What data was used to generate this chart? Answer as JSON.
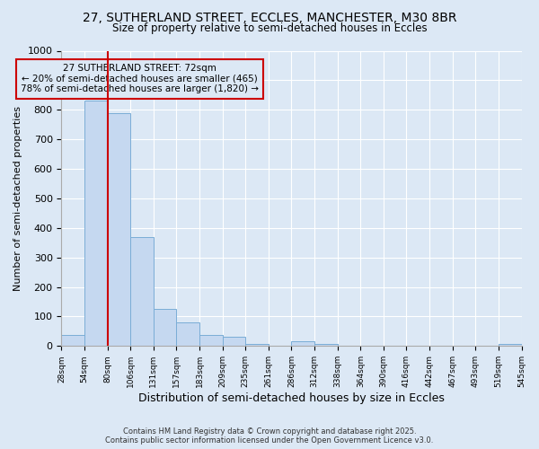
{
  "title_line1": "27, SUTHERLAND STREET, ECCLES, MANCHESTER, M30 8BR",
  "title_line2": "Size of property relative to semi-detached houses in Eccles",
  "xlabel": "Distribution of semi-detached houses by size in Eccles",
  "ylabel": "Number of semi-detached properties",
  "bar_values": [
    38,
    830,
    790,
    370,
    125,
    80,
    38,
    32,
    8,
    0,
    15,
    8,
    0,
    0,
    0,
    0,
    0,
    0,
    0,
    8
  ],
  "bin_labels": [
    "28sqm",
    "54sqm",
    "80sqm",
    "106sqm",
    "131sqm",
    "157sqm",
    "183sqm",
    "209sqm",
    "235sqm",
    "261sqm",
    "286sqm",
    "312sqm",
    "338sqm",
    "364sqm",
    "390sqm",
    "416sqm",
    "442sqm",
    "467sqm",
    "493sqm",
    "519sqm",
    "545sqm"
  ],
  "bar_color": "#c5d8f0",
  "bar_edge_color": "#7aadd6",
  "annotation_line1": "27 SUTHERLAND STREET: 72sqm",
  "annotation_line2": "← 20% of semi-detached houses are smaller (465)",
  "annotation_line3": "78% of semi-detached houses are larger (1,820) →",
  "annotation_box_color": "#cc0000",
  "vline_color": "#cc0000",
  "vline_x_bin": 2,
  "ylim": [
    0,
    1000
  ],
  "yticks": [
    0,
    100,
    200,
    300,
    400,
    500,
    600,
    700,
    800,
    900,
    1000
  ],
  "bg_color": "#dce8f5",
  "grid_color": "#ffffff",
  "footer_line1": "Contains HM Land Registry data © Crown copyright and database right 2025.",
  "footer_line2": "Contains public sector information licensed under the Open Government Licence v3.0."
}
